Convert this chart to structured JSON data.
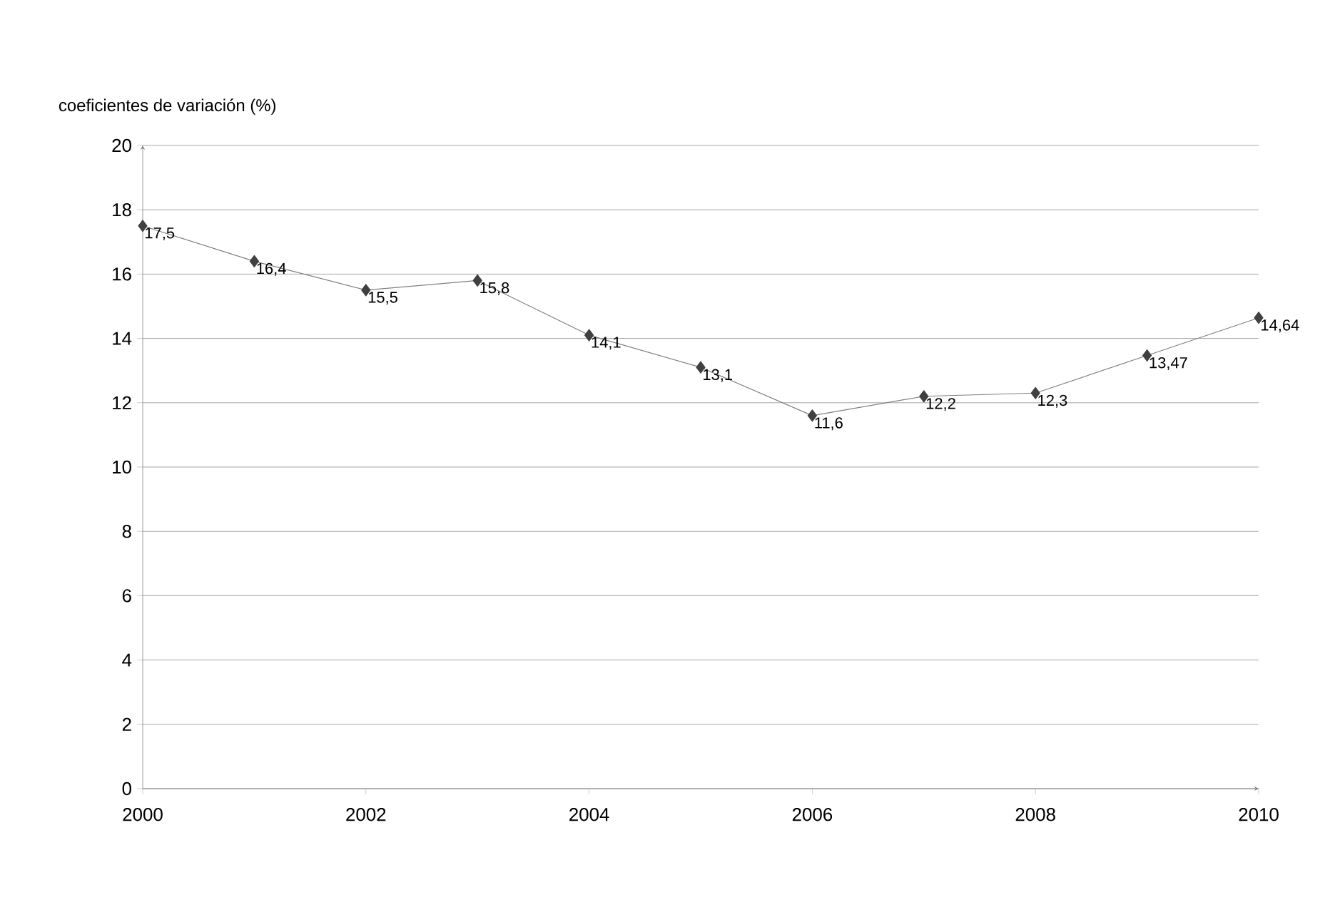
{
  "chart_data": {
    "type": "line",
    "ylabel": "coeficientes de variación (%)",
    "x": [
      2000,
      2001,
      2002,
      2003,
      2004,
      2005,
      2006,
      2007,
      2008,
      2009,
      2010
    ],
    "series": [
      {
        "color": "#404040",
        "values": [
          17.5,
          16.4,
          15.5,
          15.8,
          14.1,
          13.1,
          11.6,
          12.2,
          12.3,
          13.47,
          14.64
        ],
        "value_labels": [
          "17,5",
          "16,4",
          "15,5",
          "15,8",
          "14,1",
          "13,1",
          "11,6",
          "12,2",
          "12,3",
          "13,47",
          "14,64"
        ]
      }
    ],
    "xlim": [
      2000,
      2010
    ],
    "xticks": [
      2000,
      2002,
      2004,
      2006,
      2008,
      2010
    ],
    "ylim": [
      0,
      20
    ],
    "yticks": [
      0,
      2,
      4,
      6,
      8,
      10,
      12,
      14,
      16,
      18,
      20
    ],
    "grid": "y",
    "marker": "diamond",
    "line_style": "solid"
  }
}
